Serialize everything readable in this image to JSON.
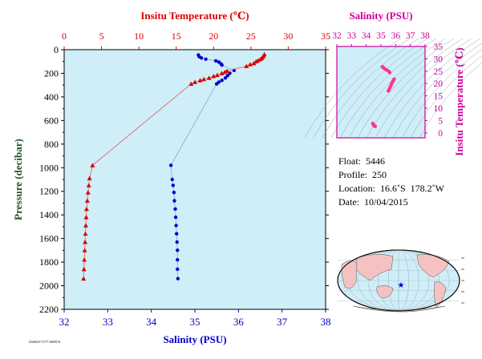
{
  "chart_data": [
    {
      "type": "scatter",
      "name_key": "main_profile",
      "y_axis": {
        "label": "Pressure (decibar)",
        "range": [
          0,
          2200
        ],
        "ticks": [
          0,
          200,
          400,
          600,
          800,
          1000,
          1200,
          1400,
          1600,
          1800,
          2000,
          2200
        ],
        "inverted": true
      },
      "x_top": {
        "label": "Insitu Temperature (℃)",
        "range": [
          0,
          35
        ],
        "ticks": [
          0,
          5,
          10,
          15,
          20,
          25,
          30,
          35
        ],
        "color": "#dd0000"
      },
      "x_bottom": {
        "label": "Salinity (PSU)",
        "range": [
          32,
          38
        ],
        "ticks": [
          32,
          33,
          34,
          35,
          36,
          37,
          38
        ],
        "color": "#0000cc"
      },
      "background": "#cfeef7",
      "series": [
        {
          "variable": "temperature",
          "marker": "triangle",
          "color": "#dd0000",
          "line_color": "#e06666",
          "points": [
            [
              26.8,
              40
            ],
            [
              26.7,
              55
            ],
            [
              26.5,
              70
            ],
            [
              26.3,
              80
            ],
            [
              26.0,
              90
            ],
            [
              25.7,
              100
            ],
            [
              25.4,
              115
            ],
            [
              24.9,
              125
            ],
            [
              24.4,
              140
            ],
            [
              21.8,
              180
            ],
            [
              21.5,
              190
            ],
            [
              21.1,
              200
            ],
            [
              20.5,
              215
            ],
            [
              20.0,
              225
            ],
            [
              19.4,
              240
            ],
            [
              18.7,
              250
            ],
            [
              18.2,
              260
            ],
            [
              17.5,
              275
            ],
            [
              17.0,
              290
            ],
            [
              3.8,
              980
            ],
            [
              3.4,
              1090
            ],
            [
              3.3,
              1150
            ],
            [
              3.2,
              1210
            ],
            [
              3.1,
              1280
            ],
            [
              3.0,
              1350
            ],
            [
              2.95,
              1420
            ],
            [
              2.9,
              1490
            ],
            [
              2.85,
              1560
            ],
            [
              2.8,
              1630
            ],
            [
              2.75,
              1700
            ],
            [
              2.7,
              1780
            ],
            [
              2.65,
              1860
            ],
            [
              2.6,
              1940
            ]
          ]
        },
        {
          "variable": "salinity",
          "marker": "circle",
          "color": "#0000cc",
          "line_color": "#7fa8e0",
          "points": [
            [
              35.08,
              45
            ],
            [
              35.1,
              60
            ],
            [
              35.15,
              70
            ],
            [
              35.25,
              80
            ],
            [
              35.48,
              95
            ],
            [
              35.55,
              105
            ],
            [
              35.6,
              120
            ],
            [
              35.62,
              130
            ],
            [
              35.9,
              175
            ],
            [
              35.8,
              200
            ],
            [
              35.75,
              220
            ],
            [
              35.7,
              240
            ],
            [
              35.62,
              260
            ],
            [
              35.55,
              275
            ],
            [
              35.5,
              290
            ],
            [
              34.45,
              980
            ],
            [
              34.48,
              1100
            ],
            [
              34.5,
              1150
            ],
            [
              34.52,
              1210
            ],
            [
              34.53,
              1280
            ],
            [
              34.55,
              1350
            ],
            [
              34.56,
              1420
            ],
            [
              34.57,
              1490
            ],
            [
              34.58,
              1560
            ],
            [
              34.59,
              1630
            ],
            [
              34.6,
              1700
            ],
            [
              34.6,
              1780
            ],
            [
              34.6,
              1860
            ],
            [
              34.61,
              1940
            ]
          ]
        }
      ]
    },
    {
      "type": "scatter",
      "name_key": "ts_diagram",
      "x_top": {
        "label": "Salinity (PSU)",
        "range": [
          32,
          38
        ],
        "ticks": [
          32,
          33,
          34,
          35,
          36,
          37,
          38
        ],
        "color": "#cc0099"
      },
      "y_right": {
        "label": "Insitu Temperature (℃)",
        "range": [
          -2,
          35
        ],
        "ticks": [
          0,
          5,
          10,
          15,
          20,
          25,
          30,
          35
        ],
        "color": "#cc0099"
      },
      "background": "#cfeef7",
      "series": [
        {
          "variable": "ts",
          "marker": "circle",
          "color": "#ff3399",
          "points": [
            [
              35.1,
              26.8
            ],
            [
              35.15,
              26.5
            ],
            [
              35.2,
              26.2
            ],
            [
              35.3,
              25.8
            ],
            [
              35.4,
              25.4
            ],
            [
              35.55,
              24.9
            ],
            [
              35.6,
              24.4
            ],
            [
              35.9,
              21.8
            ],
            [
              35.85,
              21.3
            ],
            [
              35.8,
              20.8
            ],
            [
              35.75,
              20.2
            ],
            [
              35.7,
              19.5
            ],
            [
              35.65,
              18.8
            ],
            [
              35.6,
              18.2
            ],
            [
              35.55,
              17.5
            ],
            [
              35.5,
              17.0
            ],
            [
              34.45,
              3.8
            ],
            [
              34.48,
              3.4
            ],
            [
              34.5,
              3.2
            ],
            [
              34.52,
              3.0
            ],
            [
              34.55,
              2.9
            ],
            [
              34.58,
              2.8
            ],
            [
              34.6,
              2.7
            ],
            [
              34.61,
              2.6
            ]
          ]
        }
      ]
    }
  ],
  "info": {
    "float": "Float:  5446",
    "profile": "Profile:  250",
    "location": "Location:  16.6˚S  178.2˚W",
    "date": "Date:  10/04/2015"
  },
  "map": {
    "marker_symbol": "★",
    "marker_color": "#0000cc",
    "ocean_color": "#cfeef7",
    "land_color": "#f4c2c2"
  },
  "footer": {
    "text": "Z44602171177.500007d"
  }
}
